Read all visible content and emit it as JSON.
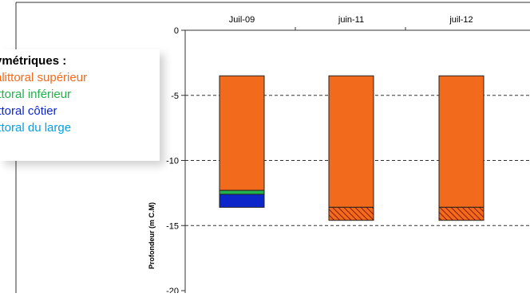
{
  "chart_data": {
    "type": "bar",
    "categories": [
      "Juil-09",
      "juin-11",
      "juil-12"
    ],
    "ylabel": "Profondeur (m C.M)",
    "ylim": [
      -20,
      0
    ],
    "yticks": [
      0,
      -5,
      -10,
      -15,
      -20
    ],
    "grid": "horizontal dashed at -5, -10, -15",
    "legend_position": "left",
    "series": [
      {
        "name": "Infralittoral supérieur",
        "color": "#f26b1d",
        "pattern": "solid",
        "ranges": [
          [
            -3.5,
            -12.3
          ],
          [
            -3.5,
            -13.6
          ],
          [
            -3.5,
            -13.6
          ]
        ]
      },
      {
        "name": "Circalittoral inférieur",
        "color": "#22b14c",
        "pattern": "solid",
        "ranges": [
          [
            -12.3,
            -12.6
          ],
          null,
          null
        ]
      },
      {
        "name": "Circalittoral côtier",
        "color": "#0d26c9",
        "pattern": "solid",
        "ranges": [
          [
            -12.6,
            -13.6
          ],
          null,
          null
        ]
      },
      {
        "name": "Circalittoral du large",
        "color": "#00a2e8",
        "pattern": "solid",
        "ranges": [
          null,
          null,
          null
        ]
      },
      {
        "name": "",
        "color": "#f26b1d",
        "pattern": "hatched",
        "ranges": [
          null,
          [
            -13.6,
            -14.6
          ],
          [
            -13.6,
            -14.6
          ]
        ]
      }
    ]
  },
  "legend": {
    "title": "ymétriques :",
    "items": [
      {
        "label": "alittoral supérieur",
        "color": "#f26b1d"
      },
      {
        "label": "ittoral inférieur",
        "color": "#22b14c"
      },
      {
        "label": "ittoral côtier",
        "color": "#0d26c9"
      },
      {
        "label": "ittoral du large",
        "color": "#00a2e8"
      }
    ]
  }
}
